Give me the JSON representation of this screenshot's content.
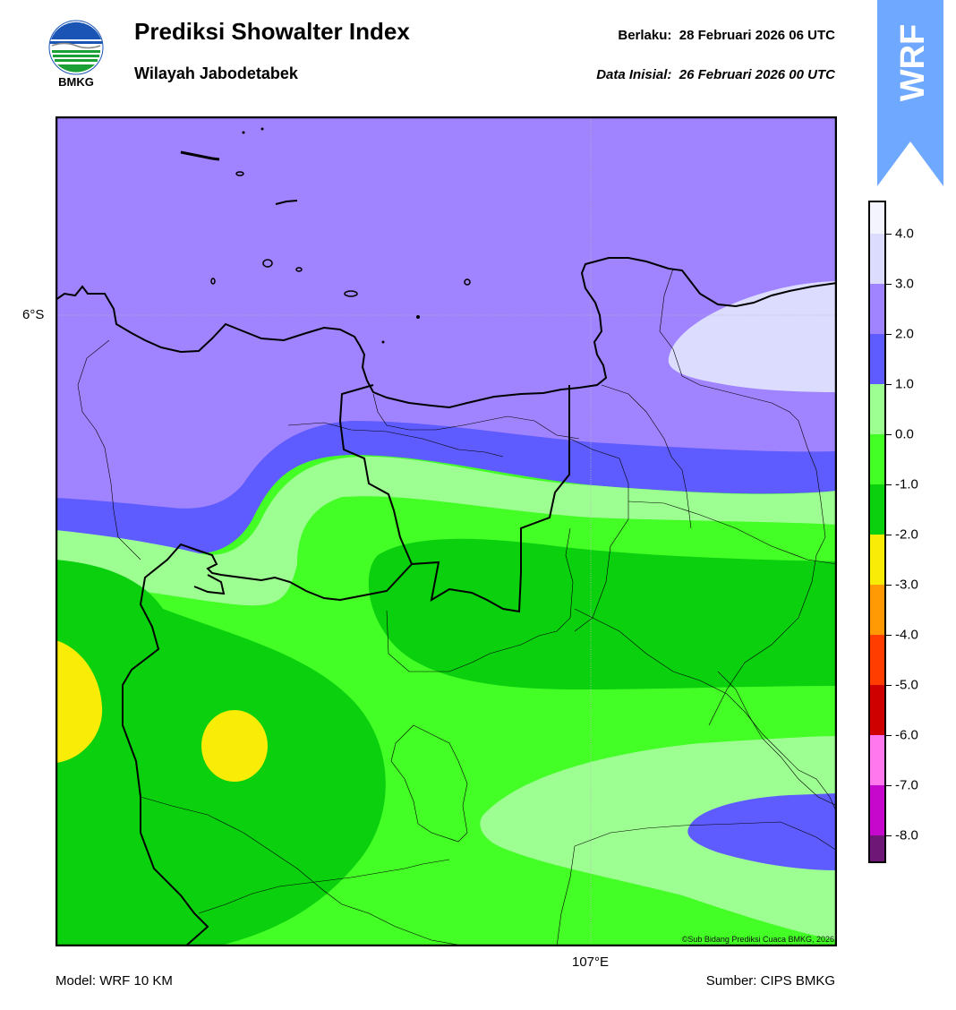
{
  "header": {
    "title": "Prediksi Showalter Index",
    "subtitle": "Wilayah Jabodetabek",
    "valid_label": "Berlaku:",
    "valid_value": "28 Februari 2026 06 UTC",
    "init_label": "Data Inisial:",
    "init_value": "26 Februari 2026 00 UTC"
  },
  "logo": {
    "text": "BMKG",
    "icon": "bmkg-logo-icon"
  },
  "banner": {
    "text": "WRF",
    "color": "#6fa8ff"
  },
  "map": {
    "lat_label": "6°S",
    "lon_label": "107°E",
    "copyright": "©Sub Bidang Prediksi Cuaca BMKG, 2026"
  },
  "footer": {
    "model": "Model: WRF 10 KM",
    "source": "Sumber: CIPS BMKG"
  },
  "colorbar": {
    "levels": [
      {
        "label": "4.0",
        "color": "#dcdcff"
      },
      {
        "label": "3.0",
        "color": "#a083ff"
      },
      {
        "label": "2.0",
        "color": "#5e5cff"
      },
      {
        "label": "1.0",
        "color": "#9dff91"
      },
      {
        "label": "0.0",
        "color": "#43ff26"
      },
      {
        "label": "-1.0",
        "color": "#0ad00e"
      },
      {
        "label": "-2.0",
        "color": "#f9ec06"
      },
      {
        "label": "-3.0",
        "color": "#ff9a05"
      },
      {
        "label": "-4.0",
        "color": "#ff3d00"
      },
      {
        "label": "-5.0",
        "color": "#ce0000"
      },
      {
        "label": "-6.0",
        "color": "#ff78ee"
      },
      {
        "label": "-7.0",
        "color": "#c608cc"
      },
      {
        "label": "-8.0",
        "color": "#6f1776"
      }
    ],
    "top_color": "#f4f4ff"
  }
}
